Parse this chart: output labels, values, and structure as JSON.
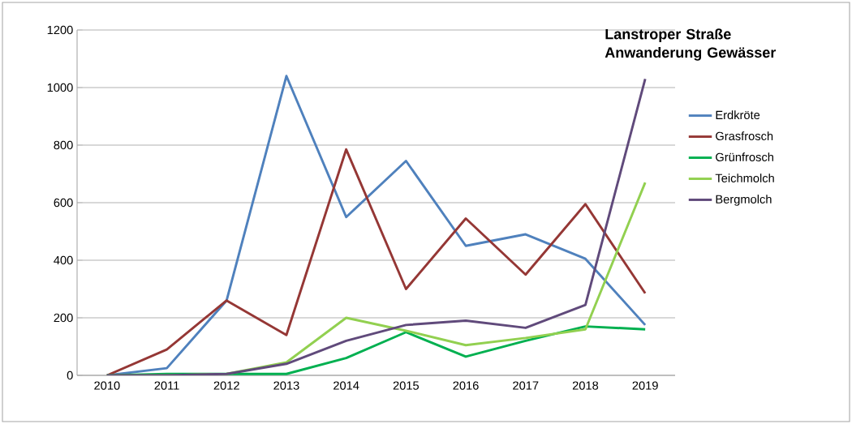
{
  "chart_data": {
    "type": "line",
    "title": "Lanstroper Straße Anwanderung Gewässer",
    "categories": [
      "2010",
      "2011",
      "2012",
      "2013",
      "2014",
      "2015",
      "2016",
      "2017",
      "2018",
      "2019"
    ],
    "series": [
      {
        "name": "Erdkröte",
        "color": "#4f81bd",
        "values": [
          0,
          25,
          260,
          1040,
          550,
          745,
          450,
          490,
          405,
          175
        ]
      },
      {
        "name": "Grasfrosch",
        "color": "#953735",
        "values": [
          0,
          90,
          260,
          140,
          785,
          300,
          545,
          350,
          595,
          285
        ]
      },
      {
        "name": "Grünfrosch",
        "color": "#00b050",
        "values": [
          0,
          5,
          5,
          5,
          60,
          150,
          65,
          120,
          170,
          160
        ]
      },
      {
        "name": "Teichmolch",
        "color": "#92d050",
        "values": [
          0,
          0,
          5,
          45,
          200,
          155,
          105,
          130,
          160,
          670
        ]
      },
      {
        "name": "Bergmolch",
        "color": "#604a7b",
        "values": [
          0,
          0,
          5,
          40,
          120,
          175,
          190,
          165,
          245,
          1030
        ]
      }
    ],
    "ylim": [
      0,
      1200
    ],
    "yticks": [
      0,
      200,
      400,
      600,
      800,
      1000,
      1200
    ],
    "grid": "y",
    "legend": "right",
    "marker": "none",
    "line_style": "solid"
  }
}
